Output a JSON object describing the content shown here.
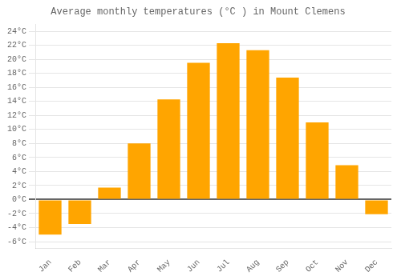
{
  "chart_data": {
    "type": "bar",
    "title": "Average monthly temperatures (°C ) in Mount Clemens",
    "categories": [
      "Jan",
      "Feb",
      "Mar",
      "Apr",
      "May",
      "Jun",
      "Jul",
      "Aug",
      "Sep",
      "Oct",
      "Nov",
      "Dec"
    ],
    "values": [
      -5.0,
      -3.5,
      1.7,
      8.0,
      14.3,
      19.5,
      22.3,
      21.3,
      17.4,
      11.0,
      4.9,
      -2.1
    ],
    "color": "#FFA500",
    "ylim": [
      -7,
      25
    ],
    "yticks": [
      {
        "value": -6,
        "label": "-6°C"
      },
      {
        "value": -4,
        "label": "-4°C"
      },
      {
        "value": -2,
        "label": "-2°C"
      },
      {
        "value": 0,
        "label": "0°C"
      },
      {
        "value": 2,
        "label": "2°C"
      },
      {
        "value": 4,
        "label": "4°C"
      },
      {
        "value": 6,
        "label": "6°C"
      },
      {
        "value": 8,
        "label": "8°C"
      },
      {
        "value": 10,
        "label": "10°C"
      },
      {
        "value": 12,
        "label": "12°C"
      },
      {
        "value": 14,
        "label": "14°C"
      },
      {
        "value": 16,
        "label": "16°C"
      },
      {
        "value": 18,
        "label": "18°C"
      },
      {
        "value": 20,
        "label": "20°C"
      },
      {
        "value": 22,
        "label": "22°C"
      },
      {
        "value": 24,
        "label": "24°C"
      }
    ],
    "grid": true
  }
}
